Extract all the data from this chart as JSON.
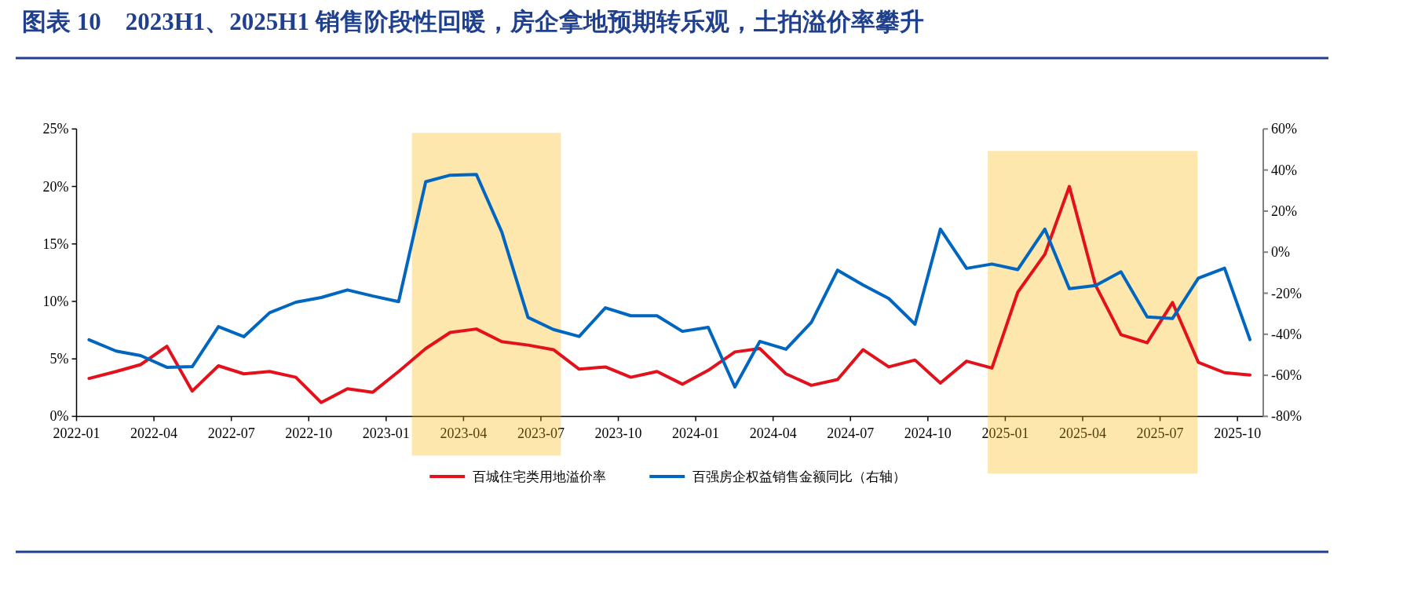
{
  "chart_data": {
    "type": "line",
    "title": "图表 10　2023H1、2025H1 销售阶段性回暖，房企拿地预期转乐观，土拍溢价率攀升",
    "x": [
      "2022-01-16",
      "2022-02-16",
      "2022-03-16",
      "2022-04-16",
      "2022-05-16",
      "2022-06-16",
      "2022-07-16",
      "2022-08-16",
      "2022-09-16",
      "2022-10-16",
      "2022-11-16",
      "2022-12-16",
      "2023-01-16",
      "2023-02-16",
      "2023-03-16",
      "2023-04-16",
      "2023-05-16",
      "2023-06-16",
      "2023-07-16",
      "2023-08-16",
      "2023-09-16",
      "2023-10-16",
      "2023-11-16",
      "2023-12-16",
      "2024-01-16",
      "2024-02-16",
      "2024-03-16",
      "2024-04-16",
      "2024-05-16",
      "2024-06-16",
      "2024-07-16",
      "2024-08-16",
      "2024-09-16",
      "2024-10-16",
      "2024-11-16",
      "2024-12-16",
      "2025-01-16",
      "2025-02-16",
      "2025-03-16",
      "2025-04-16",
      "2025-05-16",
      "2025-06-16",
      "2025-07-16",
      "2025-08-16",
      "2025-09-16",
      "2025-10-16"
    ],
    "xlim": [
      "2022-01",
      "2025-11"
    ],
    "xticks": [
      "2022-01",
      "2022-04",
      "2022-07",
      "2022-10",
      "2023-01",
      "2023-04",
      "2023-07",
      "2023-10",
      "2024-01",
      "2024-04",
      "2024-07",
      "2024-10",
      "2025-01",
      "2025-04",
      "2025-07",
      "2025-10"
    ],
    "ylim": [
      0,
      25
    ],
    "yticks": [
      {
        "value": 0,
        "label": "0%"
      },
      {
        "value": 5,
        "label": "5%"
      },
      {
        "value": 10,
        "label": "10%"
      },
      {
        "value": 15,
        "label": "15%"
      },
      {
        "value": 20,
        "label": "20%"
      },
      {
        "value": 25,
        "label": "25%"
      }
    ],
    "y2lim": [
      -80,
      60
    ],
    "y2ticks": [
      {
        "value": -80,
        "label": "-80%"
      },
      {
        "value": -60,
        "label": "-60%"
      },
      {
        "value": -40,
        "label": "-40%"
      },
      {
        "value": -20,
        "label": "-20%"
      },
      {
        "value": 0,
        "label": "0%"
      },
      {
        "value": 20,
        "label": "20%"
      },
      {
        "value": 40,
        "label": "40%"
      },
      {
        "value": 60,
        "label": "60%"
      }
    ],
    "series": [
      {
        "name": "百城住宅类用地溢价率",
        "color": "#e3111b",
        "values": [
          3.3,
          3.9,
          4.5,
          6.1,
          2.2,
          4.4,
          3.7,
          3.9,
          3.4,
          1.2,
          2.4,
          2.1,
          3.9,
          5.9,
          7.3,
          7.6,
          6.5,
          6.2,
          5.8,
          4.1,
          4.3,
          3.4,
          3.9,
          2.8,
          4.0,
          5.6,
          5.9,
          3.7,
          2.7,
          3.2,
          5.8,
          4.3,
          4.9,
          2.9,
          4.8,
          4.2,
          10.8,
          14.1,
          20.0,
          11.4,
          7.1,
          6.4,
          9.9,
          4.7,
          3.8,
          3.6
        ]
      },
      {
        "name": "百强房企权益销售金额同比（右轴）",
        "color": "#0066c0",
        "axis": "y2",
        "values": [
          -42.7,
          -48.2,
          -50.4,
          -56.1,
          -55.8,
          -36.3,
          -41.2,
          -29.5,
          -24.4,
          -22.1,
          -18.4,
          -21.4,
          -24.1,
          34.3,
          37.5,
          37.8,
          9.8,
          -31.8,
          -37.7,
          -41.1,
          -27.1,
          -31.0,
          -31.0,
          -38.6,
          -36.6,
          -65.7,
          -43.5,
          -47.3,
          -34.2,
          -8.8,
          -16.0,
          -22.6,
          -35.1,
          11.2,
          -7.9,
          -5.8,
          -8.5,
          11.2,
          -17.8,
          -16.3,
          -9.6,
          -31.6,
          -32.3,
          -12.7,
          -7.8,
          -42.6
        ]
      }
    ],
    "bands": [
      {
        "axis": "x",
        "from": "2023-02-01",
        "to": "2023-07-25",
        "color": "#f8b400"
      },
      {
        "axis": "x",
        "from": "2024-12-11",
        "to": "2025-08-15",
        "color": "#f8b400"
      }
    ],
    "legend": "bottom",
    "grid": false
  }
}
